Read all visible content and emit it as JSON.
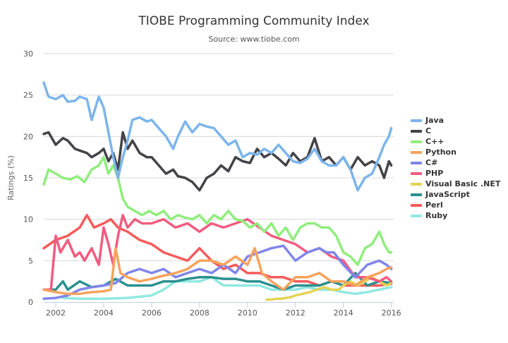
{
  "chart_data": {
    "type": "line",
    "title": "TIOBE Programming Community Index",
    "subtitle": "Source: www.tiobe.com",
    "xlabel": "",
    "ylabel": "Ratings (%)",
    "xlim": [
      2001.5,
      2016.1
    ],
    "ylim": [
      0,
      30
    ],
    "x_ticks": [
      2002,
      2004,
      2006,
      2008,
      2010,
      2012,
      2014,
      2016
    ],
    "y_ticks": [
      0,
      5,
      10,
      15,
      20,
      25,
      30
    ],
    "grid": "horizontal",
    "legend_position": "right",
    "series": [
      {
        "name": "Java",
        "color": "#7cb5ec",
        "x": [
          2001.5,
          2001.7,
          2002.0,
          2002.3,
          2002.5,
          2002.8,
          2003.0,
          2003.3,
          2003.5,
          2003.8,
          2004.0,
          2004.2,
          2004.4,
          2004.6,
          2004.8,
          2005.0,
          2005.2,
          2005.5,
          2005.8,
          2006.0,
          2006.3,
          2006.6,
          2006.9,
          2007.1,
          2007.4,
          2007.7,
          2008.0,
          2008.3,
          2008.6,
          2008.9,
          2009.2,
          2009.5,
          2009.8,
          2010.1,
          2010.4,
          2010.7,
          2011.0,
          2011.3,
          2011.6,
          2011.9,
          2012.2,
          2012.5,
          2012.8,
          2013.1,
          2013.4,
          2013.7,
          2014.0,
          2014.3,
          2014.6,
          2014.9,
          2015.2,
          2015.5,
          2015.7,
          2015.9,
          2016.0
        ],
        "y": [
          26.5,
          24.8,
          24.5,
          25.0,
          24.2,
          24.3,
          24.8,
          24.5,
          22.0,
          24.8,
          23.5,
          20.5,
          17.5,
          15.0,
          17.5,
          19.5,
          22.0,
          22.3,
          21.8,
          22.0,
          21.0,
          20.0,
          18.5,
          20.0,
          21.8,
          20.5,
          21.5,
          21.2,
          21.0,
          20.0,
          19.0,
          19.5,
          17.5,
          18.0,
          17.8,
          18.5,
          18.0,
          19.0,
          18.0,
          17.0,
          16.8,
          17.3,
          18.5,
          17.0,
          16.5,
          16.5,
          17.5,
          16.0,
          13.5,
          15.0,
          15.5,
          17.5,
          19.0,
          20.0,
          21.0
        ]
      },
      {
        "name": "C",
        "color": "#434348",
        "x": [
          2001.5,
          2001.7,
          2002.0,
          2002.3,
          2002.5,
          2002.8,
          2003.0,
          2003.3,
          2003.5,
          2003.8,
          2004.0,
          2004.2,
          2004.4,
          2004.6,
          2004.8,
          2005.0,
          2005.2,
          2005.5,
          2005.8,
          2006.0,
          2006.3,
          2006.6,
          2006.9,
          2007.1,
          2007.4,
          2007.7,
          2008.0,
          2008.3,
          2008.6,
          2008.9,
          2009.2,
          2009.5,
          2009.8,
          2010.1,
          2010.4,
          2010.7,
          2011.0,
          2011.3,
          2011.6,
          2011.9,
          2012.2,
          2012.5,
          2012.8,
          2013.1,
          2013.4,
          2013.7,
          2014.0,
          2014.3,
          2014.6,
          2014.9,
          2015.2,
          2015.5,
          2015.7,
          2015.9,
          2016.0
        ],
        "y": [
          20.3,
          20.5,
          19.0,
          19.8,
          19.5,
          18.5,
          18.3,
          18.0,
          17.5,
          18.0,
          18.5,
          17.0,
          18.0,
          16.0,
          20.5,
          18.5,
          19.5,
          18.0,
          17.5,
          17.5,
          16.5,
          15.5,
          16.0,
          15.2,
          15.0,
          14.5,
          13.5,
          15.0,
          15.5,
          16.5,
          15.8,
          17.5,
          17.0,
          16.8,
          18.5,
          17.5,
          18.0,
          17.3,
          16.5,
          18.0,
          17.0,
          17.5,
          19.8,
          17.0,
          17.5,
          16.5,
          17.5,
          16.0,
          17.5,
          16.5,
          17.0,
          16.5,
          15.0,
          17.0,
          16.5
        ]
      },
      {
        "name": "C++",
        "color": "#90ed7d",
        "x": [
          2001.5,
          2001.7,
          2002.0,
          2002.3,
          2002.6,
          2002.9,
          2003.2,
          2003.5,
          2003.8,
          2004.0,
          2004.2,
          2004.4,
          2004.6,
          2004.8,
          2005.0,
          2005.3,
          2005.6,
          2005.9,
          2006.2,
          2006.5,
          2006.8,
          2007.1,
          2007.4,
          2007.7,
          2008.0,
          2008.3,
          2008.6,
          2008.9,
          2009.2,
          2009.5,
          2009.8,
          2010.1,
          2010.4,
          2010.7,
          2011.0,
          2011.3,
          2011.6,
          2011.9,
          2012.2,
          2012.5,
          2012.8,
          2013.1,
          2013.4,
          2013.7,
          2014.0,
          2014.3,
          2014.6,
          2014.9,
          2015.2,
          2015.5,
          2015.7,
          2015.9,
          2016.0
        ],
        "y": [
          14.2,
          16.0,
          15.5,
          15.0,
          14.8,
          15.2,
          14.5,
          16.0,
          16.5,
          17.5,
          15.5,
          16.5,
          15.0,
          12.5,
          11.5,
          11.0,
          10.5,
          11.0,
          10.5,
          11.0,
          10.0,
          10.5,
          10.2,
          10.0,
          10.5,
          9.5,
          10.5,
          10.0,
          11.0,
          10.0,
          9.8,
          9.0,
          9.5,
          8.5,
          9.5,
          8.0,
          9.0,
          7.5,
          9.0,
          9.5,
          9.5,
          9.0,
          9.0,
          8.0,
          6.0,
          5.5,
          4.5,
          6.5,
          7.0,
          8.5,
          7.0,
          6.0,
          6.0
        ]
      },
      {
        "name": "Python",
        "color": "#f7a35c",
        "x": [
          2001.5,
          2002.0,
          2002.5,
          2003.0,
          2003.5,
          2004.0,
          2004.3,
          2004.5,
          2004.7,
          2005.0,
          2005.5,
          2006.0,
          2006.5,
          2007.0,
          2007.5,
          2008.0,
          2008.5,
          2009.0,
          2009.5,
          2010.0,
          2010.3,
          2010.6,
          2011.0,
          2011.5,
          2012.0,
          2012.5,
          2013.0,
          2013.5,
          2014.0,
          2014.5,
          2015.0,
          2015.5,
          2015.8,
          2016.0
        ],
        "y": [
          1.5,
          1.2,
          1.0,
          1.0,
          1.2,
          1.3,
          1.5,
          6.5,
          3.5,
          3.0,
          2.5,
          2.8,
          3.2,
          3.5,
          4.0,
          5.0,
          5.0,
          4.5,
          5.5,
          4.5,
          6.5,
          3.5,
          2.5,
          1.5,
          3.0,
          3.0,
          3.5,
          2.5,
          2.5,
          2.0,
          3.0,
          3.5,
          4.0,
          4.2
        ]
      },
      {
        "name": "C#",
        "color": "#8085e9",
        "x": [
          2001.5,
          2002.0,
          2002.5,
          2003.0,
          2003.5,
          2004.0,
          2004.5,
          2005.0,
          2005.5,
          2006.0,
          2006.5,
          2007.0,
          2007.5,
          2008.0,
          2008.5,
          2009.0,
          2009.5,
          2010.0,
          2010.5,
          2011.0,
          2011.5,
          2012.0,
          2012.5,
          2013.0,
          2013.3,
          2013.6,
          2014.0,
          2014.5,
          2015.0,
          2015.5,
          2015.8,
          2016.0
        ],
        "y": [
          0.4,
          0.5,
          0.8,
          1.5,
          1.8,
          2.0,
          2.3,
          3.5,
          4.0,
          3.5,
          4.0,
          3.0,
          3.5,
          4.0,
          3.5,
          4.5,
          3.5,
          5.5,
          6.0,
          6.5,
          6.8,
          5.0,
          6.0,
          6.5,
          6.0,
          6.0,
          4.5,
          3.0,
          4.5,
          5.0,
          4.5,
          4.0
        ]
      },
      {
        "name": "PHP",
        "color": "#f15c80",
        "x": [
          2001.5,
          2001.8,
          2002.0,
          2002.2,
          2002.5,
          2002.8,
          2003.0,
          2003.2,
          2003.5,
          2003.8,
          2004.0,
          2004.2,
          2004.4,
          2004.6,
          2004.8,
          2005.0,
          2005.3,
          2005.6,
          2006.0,
          2006.5,
          2007.0,
          2007.5,
          2008.0,
          2008.5,
          2009.0,
          2009.5,
          2010.0,
          2010.5,
          2011.0,
          2011.5,
          2012.0,
          2012.5,
          2013.0,
          2013.5,
          2014.0,
          2014.5,
          2015.0,
          2015.5,
          2015.8,
          2016.0
        ],
        "y": [
          1.5,
          1.5,
          8.0,
          6.0,
          7.5,
          5.5,
          6.0,
          5.0,
          6.5,
          4.5,
          9.0,
          7.0,
          4.5,
          8.0,
          10.5,
          9.0,
          10.0,
          9.5,
          9.5,
          10.0,
          9.0,
          9.5,
          8.5,
          9.5,
          9.0,
          9.5,
          10.0,
          9.0,
          8.0,
          7.5,
          7.0,
          6.0,
          6.5,
          5.5,
          5.0,
          3.0,
          3.0,
          2.5,
          3.0,
          2.5
        ]
      },
      {
        "name": "Visual Basic .NET",
        "color": "#e4d354",
        "x": [
          2010.8,
          2011.0,
          2011.2,
          2011.4,
          2011.6,
          2011.8,
          2012.0,
          2012.3,
          2012.6,
          2012.9,
          2013.2,
          2013.5,
          2013.8,
          2014.0,
          2014.3,
          2014.6,
          2014.9,
          2015.2,
          2015.5,
          2015.8,
          2016.0
        ],
        "y": [
          0.3,
          0.3,
          0.4,
          0.4,
          0.5,
          0.6,
          0.8,
          1.0,
          1.2,
          1.5,
          1.8,
          1.5,
          1.5,
          2.0,
          2.5,
          2.0,
          2.5,
          3.0,
          2.5,
          2.0,
          2.3
        ]
      },
      {
        "name": "JavaScript",
        "color": "#2b908f",
        "x": [
          2001.5,
          2002.0,
          2002.3,
          2002.5,
          2003.0,
          2003.5,
          2004.0,
          2004.5,
          2005.0,
          2005.5,
          2006.0,
          2006.5,
          2007.0,
          2007.5,
          2008.0,
          2008.5,
          2009.0,
          2009.5,
          2010.0,
          2010.5,
          2011.0,
          2011.5,
          2012.0,
          2012.5,
          2013.0,
          2013.5,
          2014.0,
          2014.5,
          2015.0,
          2015.5,
          2016.0
        ],
        "y": [
          1.5,
          1.5,
          2.5,
          1.5,
          2.5,
          1.8,
          2.0,
          2.8,
          2.0,
          2.0,
          2.0,
          2.5,
          2.5,
          2.8,
          3.0,
          3.0,
          2.8,
          2.8,
          2.5,
          2.5,
          2.0,
          1.5,
          2.0,
          2.0,
          2.0,
          2.5,
          2.0,
          3.5,
          2.0,
          2.5,
          2.3
        ]
      },
      {
        "name": "Perl",
        "color": "#f45b5b",
        "x": [
          2001.5,
          2002.0,
          2002.5,
          2003.0,
          2003.3,
          2003.6,
          2004.0,
          2004.3,
          2004.6,
          2005.0,
          2005.5,
          2006.0,
          2006.5,
          2007.0,
          2007.5,
          2008.0,
          2008.5,
          2009.0,
          2009.5,
          2010.0,
          2010.5,
          2011.0,
          2011.5,
          2012.0,
          2012.5,
          2013.0,
          2013.5,
          2014.0,
          2014.5,
          2015.0,
          2015.5,
          2016.0
        ],
        "y": [
          6.5,
          7.5,
          8.0,
          9.0,
          10.5,
          9.0,
          9.5,
          10.0,
          9.0,
          8.5,
          7.5,
          7.0,
          6.0,
          5.5,
          5.0,
          6.5,
          5.0,
          4.0,
          4.5,
          3.5,
          3.5,
          3.0,
          3.0,
          2.5,
          2.5,
          2.0,
          2.5,
          2.0,
          2.0,
          2.0,
          2.0,
          2.2
        ]
      },
      {
        "name": "Ruby",
        "color": "#91e8e1",
        "x": [
          2002.3,
          2003.0,
          2004.0,
          2005.0,
          2006.0,
          2006.5,
          2007.0,
          2007.5,
          2008.0,
          2008.5,
          2009.0,
          2009.5,
          2010.0,
          2010.5,
          2011.0,
          2011.5,
          2012.0,
          2012.5,
          2013.0,
          2013.5,
          2014.0,
          2014.5,
          2015.0,
          2015.5,
          2016.0
        ],
        "y": [
          0.5,
          0.4,
          0.4,
          0.5,
          0.8,
          1.5,
          2.5,
          2.5,
          2.5,
          3.0,
          2.0,
          2.0,
          2.0,
          2.0,
          1.5,
          1.5,
          1.5,
          1.8,
          1.5,
          1.5,
          1.2,
          1.0,
          1.2,
          1.5,
          1.8
        ]
      }
    ]
  }
}
